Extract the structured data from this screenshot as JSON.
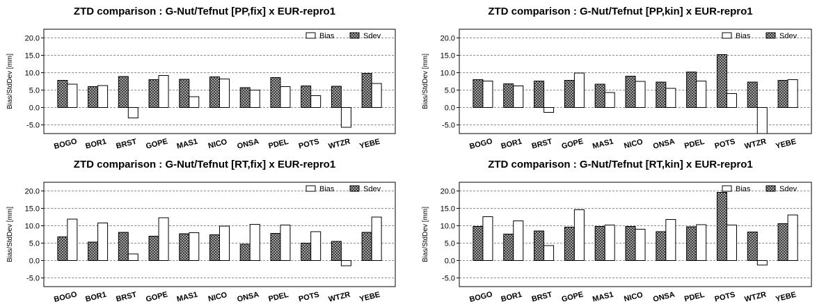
{
  "chart_data": [
    {
      "type": "bar",
      "title": "ZTD comparison : G-Nut/Tefnut [PP,fix]  x  EUR-repro1",
      "ylabel": "Bias/StdDev [mm]",
      "ylim": [
        -7.5,
        22.5
      ],
      "yticks": [
        20.0,
        15.0,
        10.0,
        5.0,
        0.0,
        -5.0
      ],
      "ytick_labels": [
        "20.0",
        "15.0",
        "10.0",
        "5.0",
        "0.0",
        "-5.0"
      ],
      "grid": true,
      "legend": "top-right",
      "categories": [
        "BOGO",
        "BOR1",
        "BRST",
        "GOPE",
        "MAS1",
        "NICO",
        "ONSA",
        "PDEL",
        "POTS",
        "WTZR",
        "YEBE"
      ],
      "series": [
        {
          "name": "Bias",
          "values": [
            6.7,
            6.3,
            -3.0,
            9.2,
            3.1,
            8.2,
            5.0,
            6.0,
            3.4,
            -5.7,
            6.9
          ]
        },
        {
          "name": "Sdev",
          "values": [
            7.8,
            6.0,
            8.9,
            8.0,
            8.1,
            8.8,
            5.7,
            8.6,
            6.2,
            6.1,
            9.8
          ]
        }
      ]
    },
    {
      "type": "bar",
      "title": "ZTD comparison : G-Nut/Tefnut [PP,kin]  x  EUR-repro1",
      "ylabel": "Bias/StdDev [mm]",
      "ylim": [
        -7.5,
        22.5
      ],
      "yticks": [
        20.0,
        15.0,
        10.0,
        5.0,
        0.0,
        -5.0
      ],
      "ytick_labels": [
        "20.0",
        "15.0",
        "10.0",
        "5.0",
        "0.0",
        "-5.0"
      ],
      "grid": true,
      "legend": "top-right",
      "categories": [
        "BOGO",
        "BOR1",
        "BRST",
        "GOPE",
        "MAS1",
        "NICO",
        "ONSA",
        "PDEL",
        "POTS",
        "WTZR",
        "YEBE"
      ],
      "series": [
        {
          "name": "Bias",
          "values": [
            7.6,
            6.2,
            -1.4,
            9.9,
            4.3,
            7.5,
            5.5,
            7.6,
            4.0,
            -7.5,
            8.0
          ]
        },
        {
          "name": "Sdev",
          "values": [
            8.0,
            6.8,
            7.6,
            7.8,
            6.7,
            9.0,
            7.3,
            10.2,
            15.2,
            7.3,
            7.8
          ]
        }
      ]
    },
    {
      "type": "bar",
      "title": "ZTD comparison : G-Nut/Tefnut [RT,fix]  x  EUR-repro1",
      "ylabel": "Bias/StdDev [mm]",
      "ylim": [
        -7.5,
        22.5
      ],
      "yticks": [
        20.0,
        15.0,
        10.0,
        5.0,
        0.0,
        -5.0
      ],
      "ytick_labels": [
        "20.0",
        "15.0",
        "10.0",
        "5.0",
        "0.0",
        "-5.0"
      ],
      "grid": true,
      "legend": "top-right",
      "categories": [
        "BOGO",
        "BOR1",
        "BRST",
        "GOPE",
        "MAS1",
        "NICO",
        "ONSA",
        "PDEL",
        "POTS",
        "WTZR",
        "YEBE"
      ],
      "series": [
        {
          "name": "Bias",
          "values": [
            11.9,
            10.8,
            1.9,
            12.3,
            8.0,
            9.9,
            10.4,
            10.2,
            8.3,
            -1.5,
            12.5
          ]
        },
        {
          "name": "Sdev",
          "values": [
            6.8,
            5.3,
            8.1,
            7.0,
            7.7,
            7.4,
            4.7,
            7.8,
            5.0,
            5.5,
            8.1
          ]
        }
      ]
    },
    {
      "type": "bar",
      "title": "ZTD comparison : G-Nut/Tefnut [RT,kin]  x  EUR-repro1",
      "ylabel": "Bias/StdDev [mm]",
      "ylim": [
        -7.5,
        22.5
      ],
      "yticks": [
        20.0,
        15.0,
        10.0,
        5.0,
        0.0,
        -5.0
      ],
      "ytick_labels": [
        "20.0",
        "15.0",
        "10.0",
        "5.0",
        "0.0",
        "-5.0"
      ],
      "grid": true,
      "legend": "top-right",
      "categories": [
        "BOGO",
        "BOR1",
        "BRST",
        "GOPE",
        "MAS1",
        "NICO",
        "ONSA",
        "PDEL",
        "POTS",
        "WTZR",
        "YEBE"
      ],
      "series": [
        {
          "name": "Bias",
          "values": [
            12.6,
            11.4,
            4.3,
            14.6,
            10.2,
            9.0,
            11.8,
            10.3,
            10.2,
            -1.3,
            13.1
          ]
        },
        {
          "name": "Sdev",
          "values": [
            9.8,
            7.6,
            8.5,
            9.6,
            9.8,
            9.8,
            8.3,
            9.7,
            19.6,
            8.2,
            10.6
          ]
        }
      ]
    }
  ]
}
